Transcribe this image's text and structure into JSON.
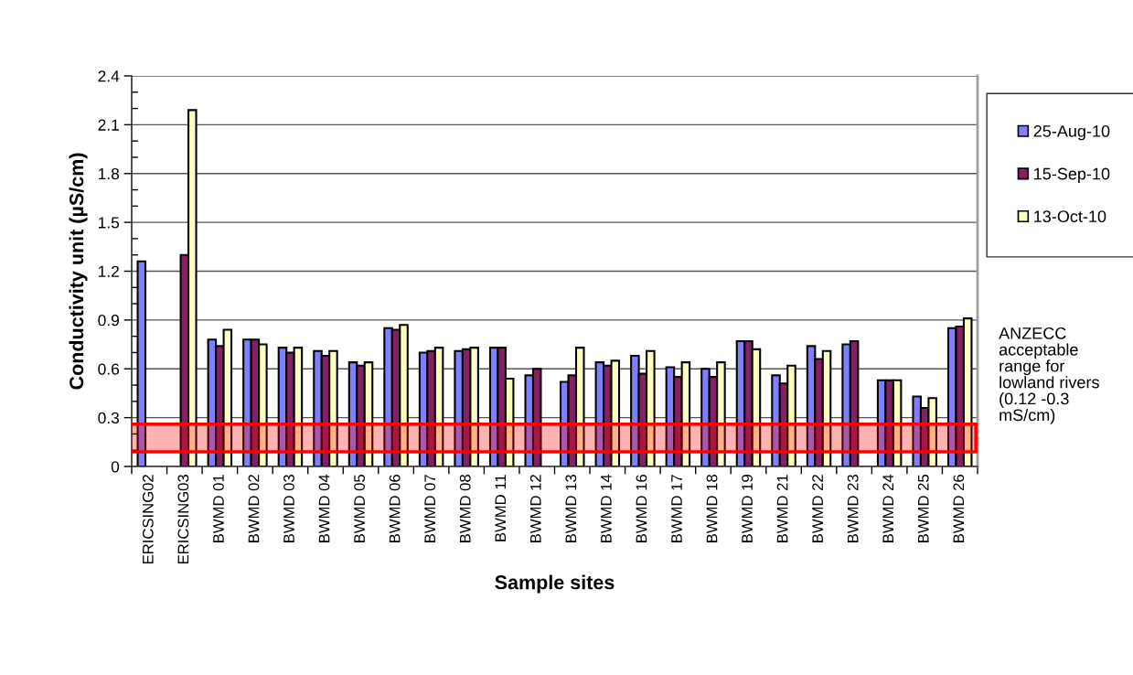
{
  "chart_data": {
    "type": "bar",
    "xlabel": "Sample sites",
    "ylabel": "Conductivity unit (µS/cm)",
    "categories": [
      "ERICSING02",
      "ERICSING03",
      "BWMD 01",
      "BWMD 02",
      "BWMD 03",
      "BWMD 04",
      "BWMD 05",
      "BWMD 06",
      "BWMD 07",
      "BWMD 08",
      "BWMD 11",
      "BWMD 12",
      "BWMD 13",
      "BWMD 14",
      "BWMD 16",
      "BWMD 17",
      "BWMD 18",
      "BWMD 19",
      "BWMD 21",
      "BWMD 22",
      "BWMD 23",
      "BWMD 24",
      "BWMD 25",
      "BWMD 26"
    ],
    "series": [
      {
        "name": "25-Aug-10",
        "color": "#8080ff",
        "values": [
          1.26,
          null,
          0.78,
          0.78,
          0.73,
          0.71,
          0.64,
          0.85,
          0.7,
          0.71,
          0.73,
          0.56,
          0.52,
          0.64,
          0.68,
          0.61,
          0.6,
          0.77,
          0.56,
          0.74,
          0.75,
          0.53,
          0.43,
          0.85
        ]
      },
      {
        "name": "15-Sep-10",
        "color": "#862062",
        "values": [
          null,
          1.3,
          0.74,
          0.78,
          0.7,
          0.68,
          0.62,
          0.84,
          0.71,
          0.72,
          0.73,
          0.6,
          0.56,
          0.62,
          0.57,
          0.55,
          0.55,
          0.77,
          0.51,
          0.66,
          0.77,
          0.53,
          0.36,
          0.86
        ]
      },
      {
        "name": "13-Oct-10",
        "color": "#ffffc0",
        "values": [
          null,
          2.19,
          0.84,
          0.75,
          0.73,
          0.71,
          0.64,
          0.87,
          0.73,
          0.73,
          0.54,
          null,
          0.73,
          0.65,
          0.71,
          0.64,
          0.64,
          0.72,
          0.62,
          0.71,
          null,
          0.53,
          0.42,
          0.91
        ]
      }
    ],
    "ylim": [
      0,
      2.4
    ],
    "yticks": [
      0,
      {
        "value": 0.1,
        "label": null
      },
      {
        "value": 0.2,
        "label": null
      },
      0.3,
      {
        "value": 0.4,
        "label": null
      },
      {
        "value": 0.5,
        "label": null
      },
      0.6,
      {
        "value": 0.7,
        "label": null
      },
      {
        "value": 0.8,
        "label": null
      },
      0.9,
      {
        "value": 1.0,
        "label": null
      },
      {
        "value": 1.1,
        "label": null
      },
      1.2,
      {
        "value": 1.3,
        "label": null
      },
      {
        "value": 1.4,
        "label": null
      },
      1.5,
      {
        "value": 1.6,
        "label": null
      },
      {
        "value": 1.7,
        "label": null
      },
      1.8,
      {
        "value": 1.9,
        "label": null
      },
      {
        "value": 2.0,
        "label": null
      },
      2.1,
      {
        "value": 2.2,
        "label": null
      },
      {
        "value": 2.3,
        "label": null
      },
      2.4
    ],
    "grid": "y",
    "legend": "right",
    "bands": [
      {
        "axis": "y",
        "from": 0.09,
        "to": 0.26,
        "label": "ANZECC\nacceptable\nrange for\nlowland rivers\n(0.12 -0.3\nmS/cm)",
        "color": "#ff0000"
      }
    ]
  }
}
